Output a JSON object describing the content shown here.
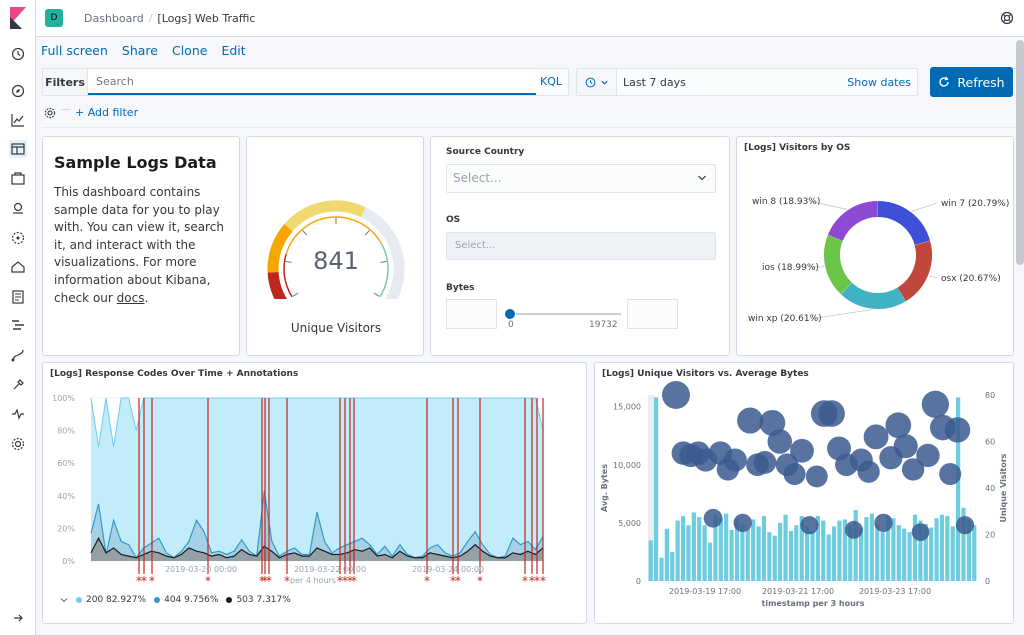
{
  "header": {
    "space_badge": "D",
    "breadcrumb_parent": "Dashboard",
    "breadcrumb_current": "[Logs] Web Traffic"
  },
  "app_menu": {
    "full_screen": "Full screen",
    "share": "Share",
    "clone": "Clone",
    "edit": "Edit"
  },
  "query_bar": {
    "filters_label": "Filters",
    "search_placeholder": "Search",
    "language": "KQL",
    "time_range": "Last 7 days",
    "show_dates": "Show dates",
    "refresh": "Refresh"
  },
  "filter_row": {
    "add_filter": "+ Add filter"
  },
  "markdown_panel": {
    "title": "Sample Logs Data",
    "body": "This dashboard contains sample data for you to play with. You can view it, search it, and interact with the visualizations. For more information about Kibana, check our",
    "link": "docs",
    "after_link": "."
  },
  "gauge_panel": {
    "value": "841",
    "label": "Unique Visitors",
    "fraction": 0.84,
    "colors": [
      "#bd271e",
      "#f5a700",
      "#f1d86f",
      "#e6ebf2",
      "#6dccb1"
    ]
  },
  "controls_panel": {
    "country_label": "Source Country",
    "country_placeholder": "Select...",
    "os_label": "OS",
    "os_placeholder": "Select...",
    "bytes_label": "Bytes",
    "bytes_min": "0",
    "bytes_max": "19732"
  },
  "os_panel": {
    "title": "[Logs] Visitors by OS",
    "slices": [
      {
        "label": "win 7 (20.79%)",
        "value": 20.79,
        "color": "#3f4fd8"
      },
      {
        "label": "osx (20.67%)",
        "value": 20.67,
        "color": "#c1463b"
      },
      {
        "label": "win xp (20.61%)",
        "value": 20.61,
        "color": "#3fb2c4"
      },
      {
        "label": "ios (18.99%)",
        "value": 18.99,
        "color": "#6cc547"
      },
      {
        "label": "win 8 (18.93%)",
        "value": 18.93,
        "color": "#8d48d4"
      }
    ]
  },
  "response_panel": {
    "title": "[Logs] Response Codes Over Time + Annotations",
    "y_ticks": [
      "100%",
      "80%",
      "60%",
      "40%",
      "20%",
      "0%"
    ],
    "x_ticks": [
      "2019-03-20 00:00",
      "2019-03-22 00:00",
      "2019-03-24 00:00"
    ],
    "x_axis_label": "per 4 hours",
    "legend": [
      {
        "label": "200 82.927%",
        "color": "#6dccf0"
      },
      {
        "label": "404 9.756%",
        "color": "#2f9cc9"
      },
      {
        "label": "503 7.317%",
        "color": "#1a1c21"
      }
    ]
  },
  "uv_panel": {
    "title": "[Logs] Unique Visitors vs. Average Bytes",
    "y_left_label": "Avg. Bytes",
    "y_right_label": "Unique Visitors",
    "left_ticks": [
      "15,000",
      "10,000",
      "5,000",
      "0"
    ],
    "right_ticks": [
      "80",
      "60",
      "40",
      "20",
      "0"
    ],
    "x_ticks": [
      "2019-03-19 17:00",
      "2019-03-21 17:00",
      "2019-03-23 17:00"
    ],
    "x_label": "timestamp per 3 hours"
  },
  "chart_data": [
    {
      "type": "pie",
      "title": "[Logs] Visitors by OS",
      "categories": [
        "win 7",
        "osx",
        "win xp",
        "ios",
        "win 8"
      ],
      "values": [
        20.79,
        20.67,
        20.61,
        18.99,
        18.93
      ]
    },
    {
      "type": "area",
      "title": "[Logs] Response Codes Over Time + Annotations",
      "xlabel": "per 4 hours",
      "ylim": [
        0,
        100
      ],
      "x_ticks": [
        "2019-03-20 00:00",
        "2019-03-22 00:00",
        "2019-03-24 00:00"
      ],
      "series": [
        {
          "name": "200",
          "values": [
            100,
            70,
            100,
            70,
            100,
            100,
            80,
            100,
            100,
            100,
            100,
            100,
            100,
            100,
            100,
            100,
            100,
            100,
            100,
            100,
            100,
            100,
            100,
            100,
            100,
            100,
            100,
            100,
            100,
            100,
            100,
            100,
            100,
            100,
            100,
            100,
            100,
            100,
            100,
            100,
            100,
            100,
            100,
            100,
            100,
            100,
            100,
            100,
            100,
            100,
            100,
            100,
            100,
            100,
            100,
            100,
            100,
            100,
            100,
            100,
            80
          ]
        },
        {
          "name": "404",
          "values": [
            17,
            35,
            4,
            25,
            12,
            10,
            2,
            8,
            11,
            14,
            5,
            2,
            6,
            12,
            25,
            18,
            5,
            6,
            4,
            6,
            13,
            6,
            3,
            43,
            12,
            3,
            6,
            8,
            4,
            4,
            30,
            12,
            5,
            8,
            10,
            12,
            14,
            10,
            4,
            9,
            3,
            10,
            4,
            2,
            3,
            8,
            10,
            5,
            3,
            5,
            12,
            18,
            10,
            4,
            2,
            3,
            14,
            10,
            12,
            7,
            15
          ]
        },
        {
          "name": "503",
          "values": [
            5,
            14,
            5,
            8,
            4,
            3,
            2,
            4,
            6,
            5,
            3,
            2,
            4,
            8,
            6,
            5,
            3,
            4,
            2,
            3,
            7,
            4,
            3,
            9,
            6,
            2,
            4,
            5,
            3,
            3,
            8,
            6,
            4,
            4,
            5,
            7,
            6,
            8,
            3,
            4,
            2,
            6,
            3,
            2,
            2,
            5,
            4,
            3,
            2,
            3,
            6,
            10,
            6,
            3,
            2,
            2,
            5,
            4,
            6,
            4,
            8
          ]
        }
      ]
    },
    {
      "type": "bar",
      "title": "[Logs] Unique Visitors vs. Average Bytes",
      "xlabel": "timestamp per 3 hours",
      "ylabel": "Avg. Bytes",
      "ylim": [
        0,
        16000
      ],
      "x_ticks": [
        "2019-03-19 17:00",
        "2019-03-21 17:00",
        "2019-03-23 17:00"
      ],
      "series": [
        {
          "name": "Avg. Bytes",
          "values": [
            3500,
            15800,
            2000,
            4500,
            2500,
            5200,
            5600,
            4800,
            5900,
            5500,
            4800,
            3300,
            5700,
            5400,
            5800,
            4400,
            5400,
            4900,
            4500,
            5300,
            4700,
            5600,
            4200,
            3900,
            5000,
            5700,
            4300,
            4800,
            5600,
            4700,
            4300,
            5600,
            5200,
            4000,
            4700,
            5200,
            5300,
            4800,
            6100,
            4600,
            5500,
            5800,
            4900,
            4200,
            5600,
            5400,
            4800,
            4500,
            4200,
            5700,
            5200,
            4900,
            4600,
            5400,
            5700,
            5600,
            4700,
            15800,
            6300,
            5200,
            4800
          ]
        },
        {
          "name": "Unique Visitors",
          "type": "scatter",
          "values": [
            80,
            55,
            54,
            55,
            52,
            27,
            55,
            48,
            52,
            25,
            69,
            50,
            51,
            68,
            60,
            50,
            46,
            56,
            24,
            45,
            72,
            72,
            57,
            50,
            22,
            52,
            47,
            62,
            25,
            53,
            67,
            58,
            48,
            21,
            54,
            76,
            66,
            46,
            65,
            24
          ]
        }
      ]
    }
  ]
}
